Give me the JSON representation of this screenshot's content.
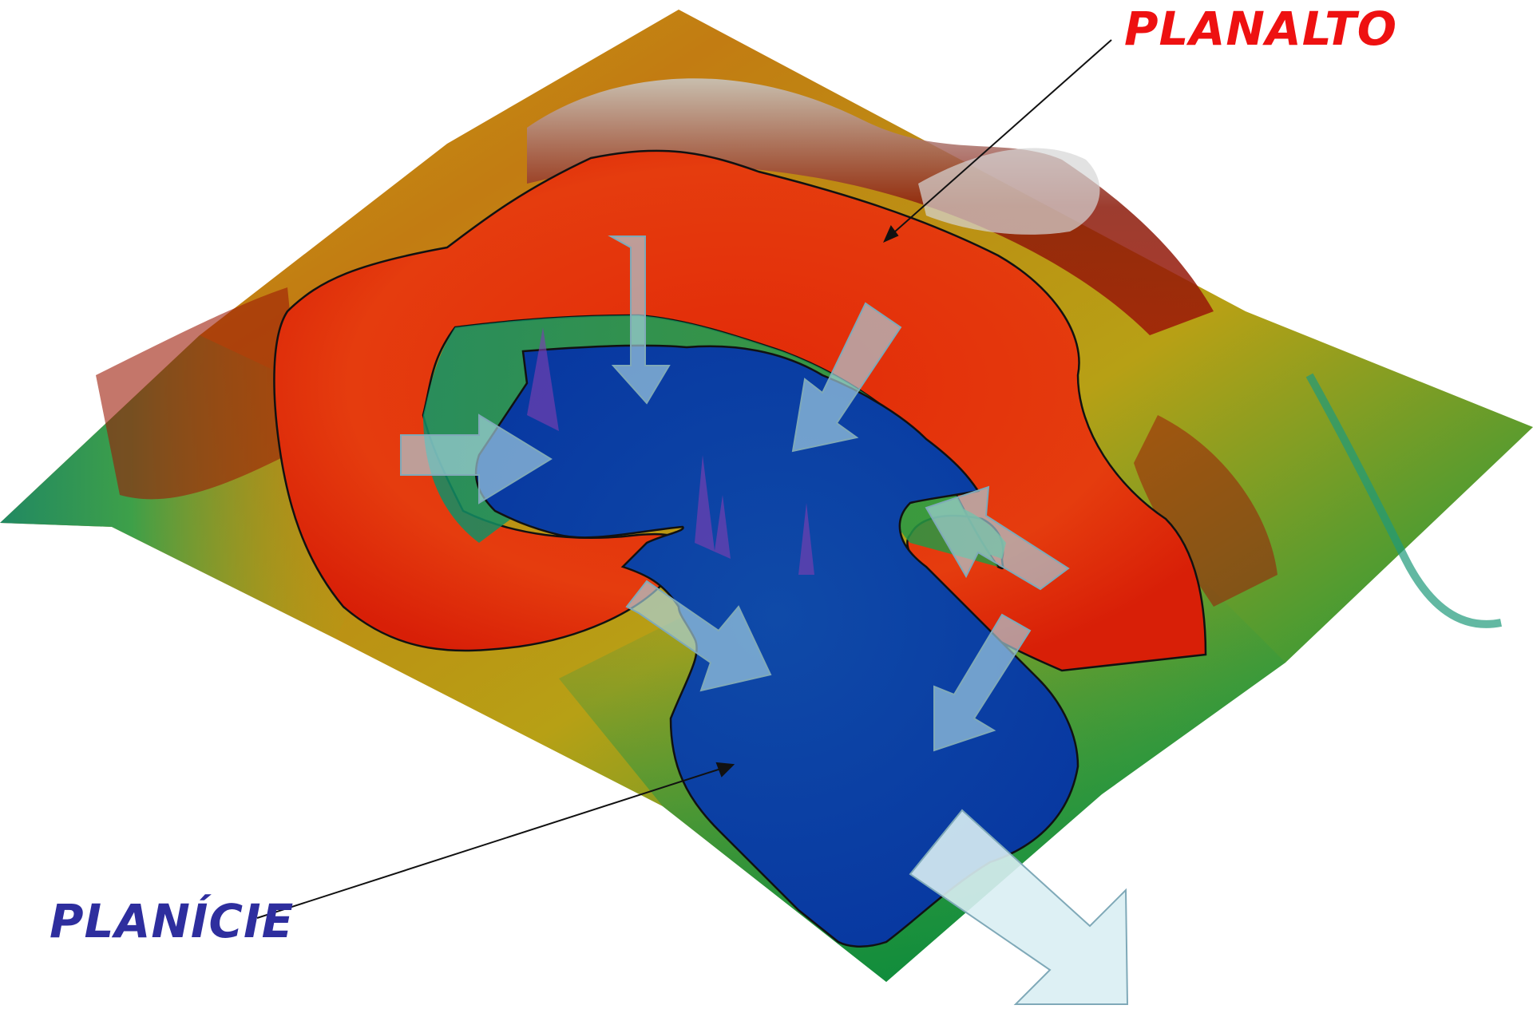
{
  "labels": {
    "planalto": "PLANALTO",
    "planicie": "PLANÍCIE"
  },
  "colors": {
    "planalto_label": "#ee1111",
    "planicie_label": "#2e2e9e",
    "plateau_zone": "#e8260a",
    "plain_zone": "#0a3fa8",
    "arrow_fill": "#a9d4e4",
    "outline": "#111111"
  },
  "arrows": {
    "count_inflow": 8,
    "count_outflow": 1,
    "direction_meaning": "drainage from plateau into plain"
  }
}
